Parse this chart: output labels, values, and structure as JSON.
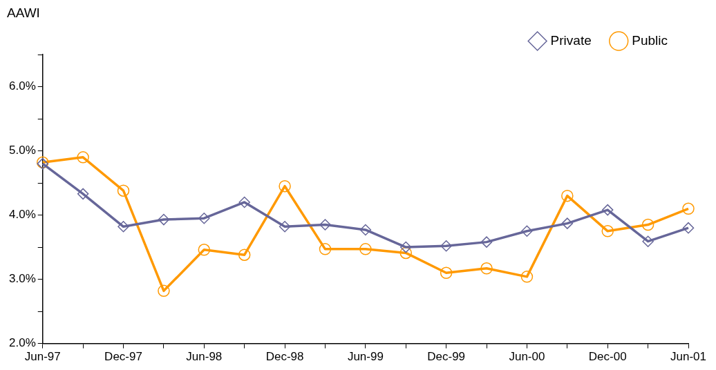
{
  "chart_data": {
    "type": "line",
    "ylabel": "AAWI",
    "categories": [
      "Jun-97",
      null,
      "Dec-97",
      null,
      "Jun-98",
      null,
      "Dec-98",
      null,
      "Jun-99",
      null,
      "Dec-99",
      null,
      "Jun-00",
      null,
      "Dec-00",
      null,
      "Jun-01"
    ],
    "series": [
      {
        "name": "Private",
        "color": "#666699",
        "marker": "diamond",
        "values": [
          4.8,
          4.33,
          3.82,
          3.93,
          3.95,
          4.2,
          3.82,
          3.85,
          3.77,
          3.5,
          3.52,
          3.58,
          3.75,
          3.87,
          4.08,
          3.59,
          3.8
        ]
      },
      {
        "name": "Public",
        "color": "#ff9900",
        "marker": "circle",
        "values": [
          4.82,
          4.9,
          4.38,
          2.82,
          3.46,
          3.38,
          4.45,
          3.47,
          3.47,
          3.41,
          3.1,
          3.17,
          3.04,
          4.3,
          3.75,
          3.85,
          4.1
        ]
      }
    ],
    "ylim": [
      2,
      6.5
    ],
    "yticks": [
      {
        "value": 2,
        "label": "2.0%"
      },
      {
        "value": 2.5,
        "label": null
      },
      {
        "value": 3,
        "label": "3.0%"
      },
      {
        "value": 3.5,
        "label": null
      },
      {
        "value": 4,
        "label": "4.0%"
      },
      {
        "value": 4.5,
        "label": null
      },
      {
        "value": 5,
        "label": "5.0%"
      },
      {
        "value": 5.5,
        "label": null
      },
      {
        "value": 6,
        "label": "6.0%"
      },
      {
        "value": 6.5,
        "label": null
      }
    ],
    "grid": false,
    "legend": "top right",
    "line_style": "solid"
  }
}
